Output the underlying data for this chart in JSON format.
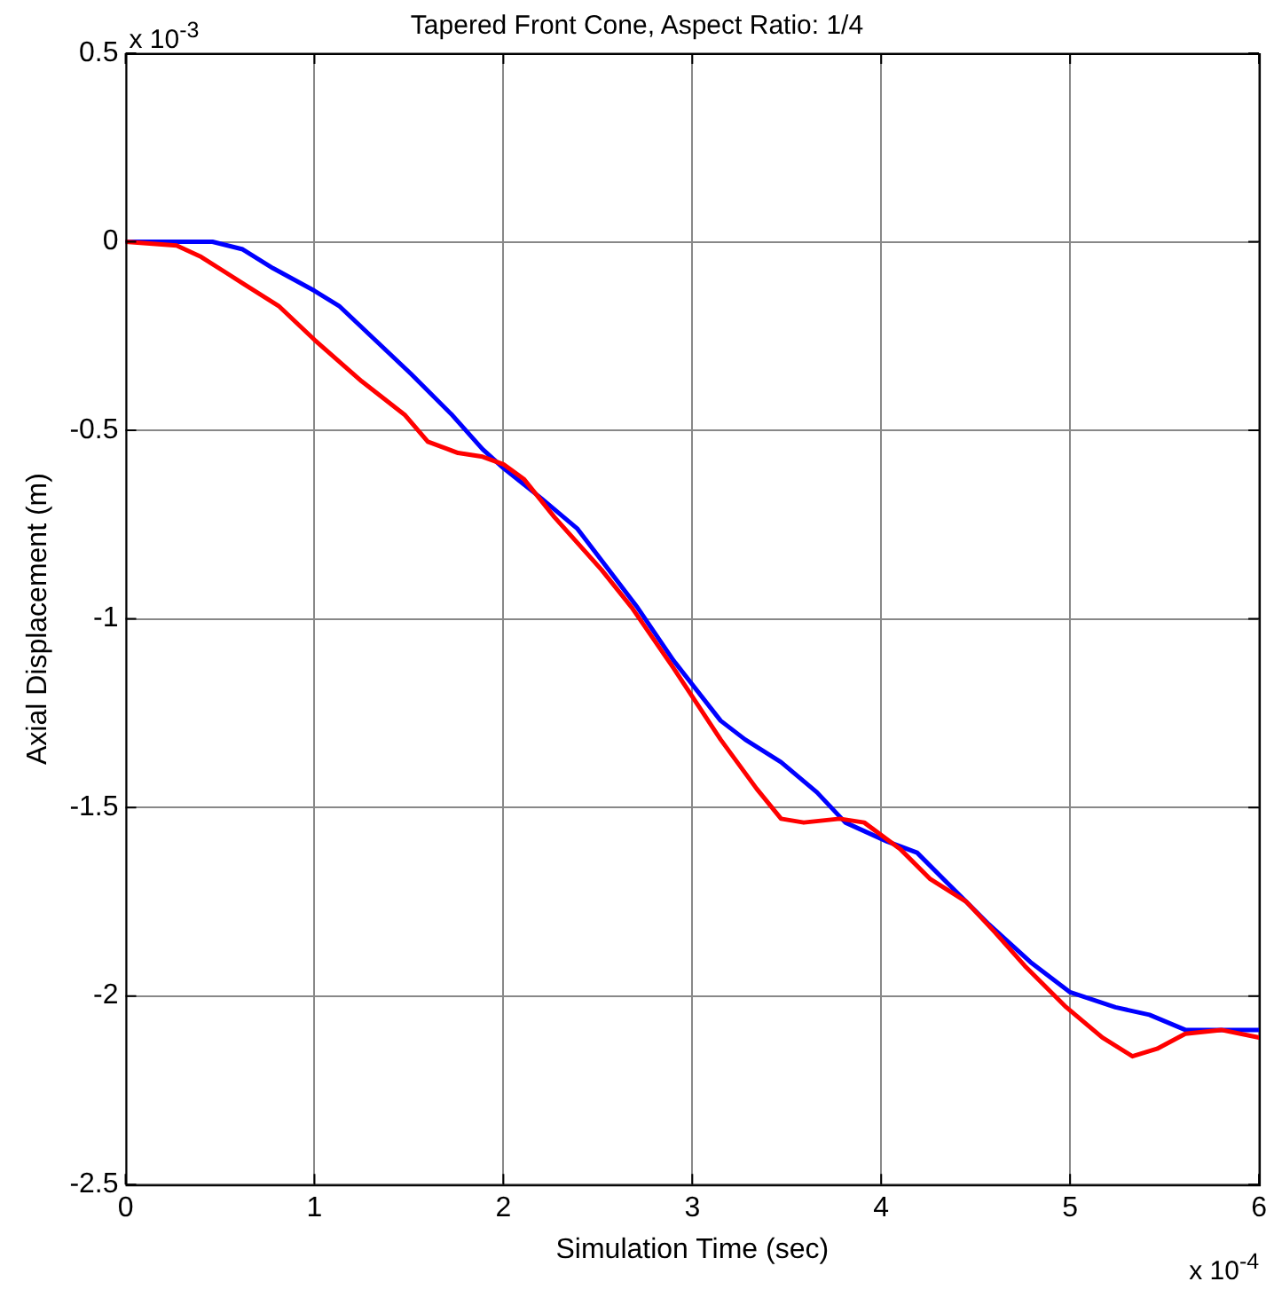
{
  "chart_data": {
    "type": "line",
    "title": "Tapered Front Cone, Aspect Ratio: 1/4",
    "xlabel": "Simulation Time (sec)",
    "ylabel": "Axial Displacement (m)",
    "annotations": [
      "x 10$^{-3}$",
      "x 10$^{-4}$"
    ],
    "xlim": [
      0,
      6
    ],
    "xticks": [
      0,
      1,
      2,
      3,
      4,
      5,
      6
    ],
    "ylim": [
      -2.5,
      0.5
    ],
    "yticks": [
      -2.5,
      -2,
      -1.5,
      -1,
      -0.5,
      0,
      0.5
    ],
    "grid": true,
    "legend": false,
    "marker": "none",
    "line_style": "solid",
    "series": [
      {
        "color": "#ff0000",
        "x": [
          0,
          0.27,
          0.4,
          0.62,
          0.81,
          1.0,
          1.25,
          1.48,
          1.6,
          1.76,
          1.89,
          2.0,
          2.11,
          2.27,
          2.52,
          2.68,
          2.9,
          3.15,
          3.34,
          3.47,
          3.59,
          3.78,
          3.91,
          4.1,
          4.26,
          4.45,
          4.6,
          4.76,
          4.98,
          5.17,
          5.33,
          5.46,
          5.61,
          5.8,
          6.0
        ],
        "values": [
          0,
          -0.01,
          -0.04,
          -0.11,
          -0.17,
          -0.26,
          -0.37,
          -0.46,
          -0.53,
          -0.56,
          -0.57,
          -0.59,
          -0.63,
          -0.73,
          -0.87,
          -0.97,
          -1.13,
          -1.32,
          -1.45,
          -1.53,
          -1.54,
          -1.53,
          -1.54,
          -1.61,
          -1.69,
          -1.75,
          -1.83,
          -1.92,
          -2.03,
          -2.11,
          -2.16,
          -2.14,
          -2.1,
          -2.09,
          -2.11
        ]
      },
      {
        "color": "#0000ff",
        "x": [
          0,
          0.46,
          0.62,
          0.78,
          1.0,
          1.13,
          1.32,
          1.51,
          1.73,
          1.89,
          2.0,
          2.2,
          2.39,
          2.71,
          2.9,
          3.15,
          3.28,
          3.47,
          3.66,
          3.81,
          4.03,
          4.19,
          4.35,
          4.57,
          4.79,
          5.0,
          5.24,
          5.42,
          5.61,
          6.0
        ],
        "values": [
          0,
          0,
          -0.02,
          -0.07,
          -0.13,
          -0.17,
          -0.26,
          -0.35,
          -0.46,
          -0.55,
          -0.6,
          -0.68,
          -0.76,
          -0.97,
          -1.11,
          -1.27,
          -1.32,
          -1.38,
          -1.46,
          -1.54,
          -1.59,
          -1.62,
          -1.7,
          -1.81,
          -1.91,
          -1.99,
          -2.03,
          -2.05,
          -2.09,
          -2.09
        ]
      }
    ]
  }
}
